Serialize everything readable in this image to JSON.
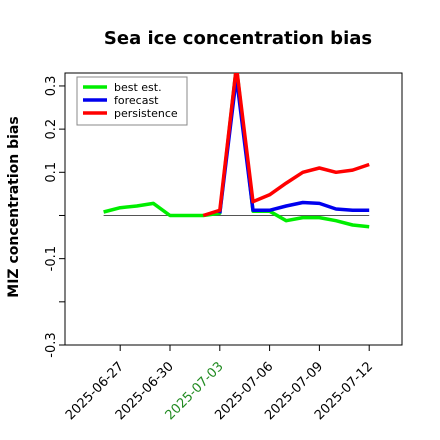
{
  "chart_data": {
    "type": "line",
    "title": "Sea ice concentration bias",
    "ylabel": "MIZ concentration bias",
    "xlabel": "",
    "ylim": [
      -0.3,
      0.3
    ],
    "yticks": [
      -0.3,
      -0.2,
      -0.1,
      0.0,
      0.1,
      0.2,
      0.3
    ],
    "ytick_labels": [
      "-0.3",
      "",
      "-0.1",
      "",
      "0.1",
      "0.2",
      "0.3"
    ],
    "xlim": [
      "2025-06-25",
      "2025-07-13"
    ],
    "xticks": [
      "2025-06-27",
      "2025-06-30",
      "2025-07-03",
      "2025-07-06",
      "2025-07-09",
      "2025-07-12"
    ],
    "xtick_labels": [
      "2025-06-27",
      "2025-06-30",
      "2025-07-03",
      "2025-07-06",
      "2025-07-09",
      "2025-07-12"
    ],
    "highlight_xtick": "2025-07-03",
    "highlight_color": "#228b22",
    "zero_line": true,
    "grid": false,
    "legend_position": "top-left",
    "series": [
      {
        "name": "best est.",
        "color": "#00ee00",
        "x": [
          "2025-06-26",
          "2025-06-27",
          "2025-06-28",
          "2025-06-29",
          "2025-06-30",
          "2025-07-01",
          "2025-07-02",
          "2025-07-03",
          "2025-07-04",
          "2025-07-05",
          "2025-07-06",
          "2025-07-07",
          "2025-07-08",
          "2025-07-09",
          "2025-07-10",
          "2025-07-11",
          "2025-07-12"
        ],
        "values": [
          0.008,
          0.018,
          0.022,
          0.028,
          0.0,
          0.0,
          0.0,
          0.005,
          0.345,
          0.01,
          0.01,
          -0.012,
          -0.005,
          -0.005,
          -0.012,
          -0.022,
          -0.026
        ]
      },
      {
        "name": "forecast",
        "color": "#0000ee",
        "x": [
          "2025-07-03",
          "2025-07-04",
          "2025-07-05",
          "2025-07-06",
          "2025-07-07",
          "2025-07-08",
          "2025-07-09",
          "2025-07-10",
          "2025-07-11",
          "2025-07-12"
        ],
        "values": [
          0.005,
          0.32,
          0.012,
          0.012,
          0.022,
          0.03,
          0.028,
          0.015,
          0.012,
          0.012
        ]
      },
      {
        "name": "persistence",
        "color": "#ff0000",
        "x": [
          "2025-07-02",
          "2025-07-03",
          "2025-07-04",
          "2025-07-05",
          "2025-07-06",
          "2025-07-07",
          "2025-07-08",
          "2025-07-09",
          "2025-07-10",
          "2025-07-11",
          "2025-07-12"
        ],
        "values": [
          0.0,
          0.012,
          0.345,
          0.032,
          0.048,
          0.075,
          0.1,
          0.11,
          0.1,
          0.105,
          0.118
        ]
      }
    ]
  }
}
